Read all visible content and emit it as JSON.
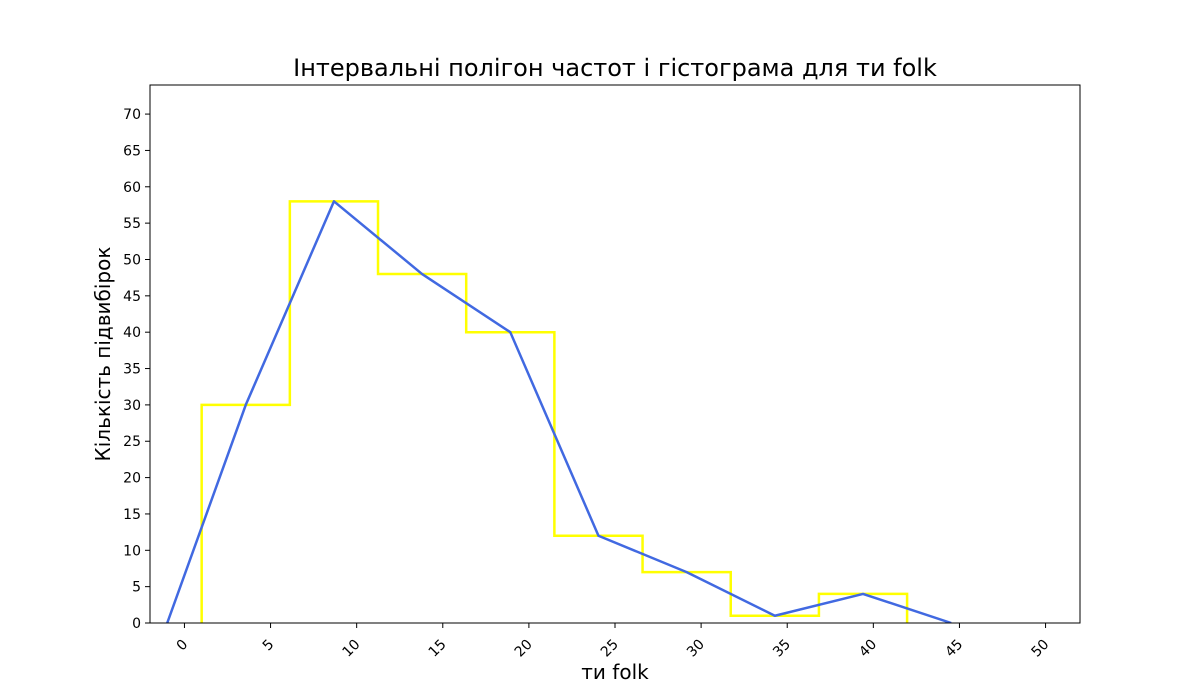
{
  "chart_data": {
    "type": "line",
    "title": "Інтервальні полігон частот і гістограма для ти folk",
    "xlabel": "ти folk",
    "ylabel": "Кількість підвибірок",
    "xlim": [
      -2,
      52
    ],
    "ylim": [
      0,
      74
    ],
    "x_ticks": [
      "0",
      "5",
      "10",
      "15",
      "20",
      "25",
      "30",
      "35",
      "40",
      "45",
      "50"
    ],
    "y_ticks": [
      "0",
      "5",
      "10",
      "15",
      "20",
      "25",
      "30",
      "35",
      "40",
      "45",
      "50",
      "55",
      "60",
      "65",
      "70"
    ],
    "histogram": {
      "color": "#ffff00",
      "bin_edges": [
        1.0,
        6.12,
        11.24,
        16.36,
        21.48,
        26.6,
        31.72,
        36.84,
        41.96
      ],
      "counts": [
        30,
        58,
        48,
        40,
        12,
        7,
        1,
        4
      ]
    },
    "polygon": {
      "color": "#4169e1",
      "x": [
        -1.0,
        3.56,
        8.68,
        13.8,
        18.92,
        24.04,
        29.16,
        34.28,
        39.4,
        44.52
      ],
      "y": [
        0,
        30,
        58,
        48,
        40,
        12,
        7,
        1,
        4,
        0
      ]
    },
    "grid": false
  }
}
